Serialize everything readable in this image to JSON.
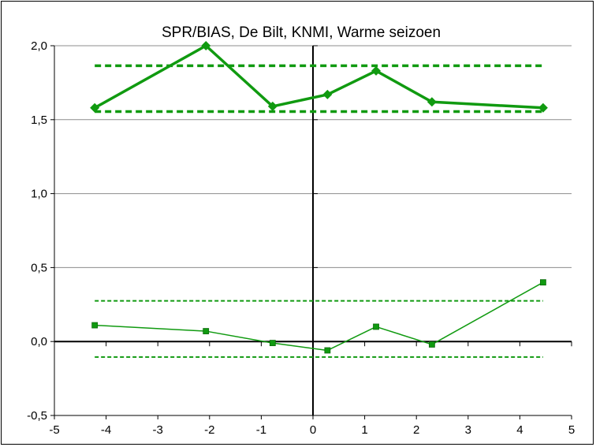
{
  "chart_data": {
    "type": "line",
    "title": "SPR/BIAS, De Bilt, KNMI, Warme seizoen",
    "xlabel": "",
    "ylabel": "",
    "xlim": [
      -5,
      5
    ],
    "ylim": [
      -0.5,
      2.0
    ],
    "x_ticks": [
      -5,
      -4,
      -3,
      -2,
      -1,
      0,
      1,
      2,
      3,
      4,
      5
    ],
    "x_tick_labels": [
      "-5",
      "-4",
      "-3",
      "-2",
      "-1",
      "0",
      "1",
      "2",
      "3",
      "4",
      "5"
    ],
    "y_ticks": [
      -0.5,
      0.0,
      0.5,
      1.0,
      1.5,
      2.0
    ],
    "y_tick_labels": [
      "-0,5",
      "0,0",
      "0,5",
      "1,0",
      "1,5",
      "2,0"
    ],
    "grid": "horizontal",
    "legend": "none",
    "series": [
      {
        "style": "thick-diamond",
        "color": "#109a10",
        "x": [
          -4.22,
          -2.07,
          -0.78,
          0.28,
          1.22,
          2.3,
          4.45
        ],
        "y": [
          1.58,
          2.0,
          1.59,
          1.67,
          1.83,
          1.62,
          1.58
        ]
      },
      {
        "style": "thin-square",
        "color": "#109a10",
        "x": [
          -4.22,
          -2.07,
          -0.78,
          0.28,
          1.22,
          2.3,
          4.45
        ],
        "y": [
          0.11,
          0.07,
          -0.01,
          -0.06,
          0.1,
          -0.02,
          0.4
        ]
      }
    ],
    "reference_lines": [
      {
        "style": "thick-dashed",
        "color": "#109a10",
        "x": [
          -4.22,
          4.45
        ],
        "y": 1.865
      },
      {
        "style": "thick-dashed",
        "color": "#109a10",
        "x": [
          -4.22,
          4.45
        ],
        "y": 1.555
      },
      {
        "style": "thin-dashed",
        "color": "#109a10",
        "x": [
          -4.22,
          4.45
        ],
        "y": 0.275
      },
      {
        "style": "thin-dashed",
        "color": "#109a10",
        "x": [
          -4.22,
          4.45
        ],
        "y": -0.105
      }
    ]
  }
}
